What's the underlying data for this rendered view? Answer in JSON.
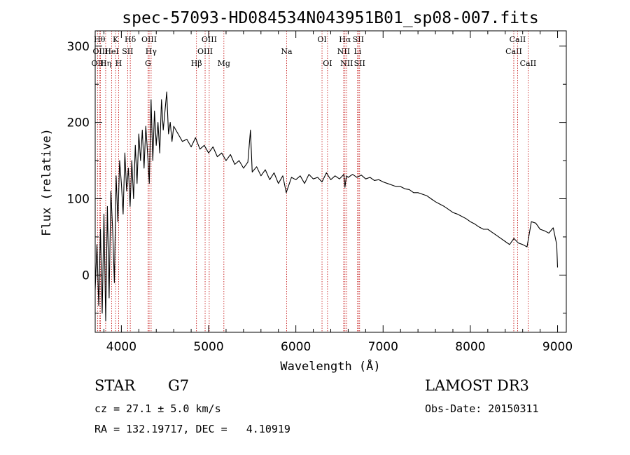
{
  "chart_data": {
    "type": "line",
    "title": "spec-57093-HD084534N043951B01_sp08-007.fits",
    "xlabel": "Wavelength (Å)",
    "ylabel": "Flux (relative)",
    "xlim": [
      3700,
      9100
    ],
    "ylim": [
      -75,
      320
    ],
    "xticks": [
      4000,
      5000,
      6000,
      7000,
      8000,
      9000
    ],
    "yticks": [
      0,
      100,
      200,
      300
    ],
    "series": [
      {
        "name": "flux",
        "x": [
          3700,
          3720,
          3740,
          3760,
          3780,
          3800,
          3820,
          3840,
          3860,
          3880,
          3900,
          3920,
          3940,
          3960,
          3980,
          4000,
          4020,
          4040,
          4060,
          4080,
          4100,
          4120,
          4140,
          4160,
          4180,
          4200,
          4220,
          4240,
          4260,
          4280,
          4300,
          4320,
          4340,
          4360,
          4380,
          4400,
          4420,
          4440,
          4460,
          4480,
          4500,
          4520,
          4540,
          4560,
          4580,
          4600,
          4650,
          4700,
          4750,
          4800,
          4850,
          4900,
          4950,
          5000,
          5050,
          5100,
          5150,
          5200,
          5250,
          5300,
          5350,
          5400,
          5450,
          5480,
          5500,
          5550,
          5600,
          5650,
          5700,
          5750,
          5800,
          5850,
          5890,
          5950,
          6000,
          6050,
          6100,
          6150,
          6200,
          6250,
          6300,
          6350,
          6400,
          6450,
          6500,
          6550,
          6563,
          6580,
          6600,
          6650,
          6700,
          6750,
          6800,
          6850,
          6900,
          6950,
          7000,
          7050,
          7100,
          7150,
          7200,
          7250,
          7300,
          7350,
          7400,
          7450,
          7500,
          7550,
          7600,
          7650,
          7700,
          7750,
          7800,
          7850,
          7900,
          7950,
          8000,
          8050,
          8100,
          8150,
          8200,
          8250,
          8300,
          8350,
          8400,
          8450,
          8500,
          8550,
          8600,
          8650,
          8700,
          8750,
          8800,
          8850,
          8900,
          8950,
          8990,
          9000
        ],
        "values": [
          -20,
          40,
          -40,
          60,
          -50,
          80,
          -60,
          90,
          -30,
          110,
          60,
          -10,
          130,
          70,
          150,
          120,
          80,
          160,
          110,
          140,
          90,
          150,
          100,
          170,
          120,
          185,
          150,
          190,
          140,
          195,
          160,
          120,
          230,
          150,
          215,
          170,
          200,
          160,
          230,
          190,
          215,
          240,
          185,
          200,
          175,
          195,
          185,
          175,
          178,
          168,
          180,
          165,
          170,
          160,
          168,
          155,
          160,
          150,
          158,
          145,
          150,
          140,
          148,
          190,
          135,
          142,
          130,
          138,
          125,
          134,
          120,
          130,
          108,
          128,
          125,
          130,
          120,
          132,
          126,
          128,
          122,
          134,
          125,
          130,
          126,
          132,
          115,
          130,
          128,
          132,
          128,
          131,
          126,
          128,
          124,
          125,
          122,
          120,
          118,
          116,
          116,
          113,
          112,
          108,
          108,
          106,
          104,
          100,
          96,
          93,
          90,
          86,
          82,
          80,
          77,
          74,
          70,
          67,
          63,
          60,
          60,
          56,
          52,
          48,
          44,
          40,
          48,
          42,
          40,
          37,
          70,
          68,
          60,
          58,
          55,
          62,
          40,
          10
        ]
      }
    ],
    "spectral_lines": [
      {
        "label": "OII",
        "x": 3727,
        "row": 2
      },
      {
        "label": "Hθ",
        "x": 3750,
        "row": 0
      },
      {
        "label": "OIII",
        "x": 3760,
        "row": 1
      },
      {
        "label": "Hη",
        "x": 3820,
        "row": 2
      },
      {
        "label": "HeI",
        "x": 3889,
        "row": 1
      },
      {
        "label": "K",
        "x": 3934,
        "row": 0
      },
      {
        "label": "H",
        "x": 3968,
        "row": 2
      },
      {
        "label": "SII",
        "x": 4072,
        "row": 1
      },
      {
        "label": "Hδ",
        "x": 4102,
        "row": 0
      },
      {
        "label": "OIII",
        "x": 4318,
        "row": 0
      },
      {
        "label": "G",
        "x": 4305,
        "row": 2
      },
      {
        "label": "Hγ",
        "x": 4341,
        "row": 1
      },
      {
        "label": "Hβ",
        "x": 4861,
        "row": 2
      },
      {
        "label": "OIII",
        "x": 4960,
        "row": 1
      },
      {
        "label": "OIII",
        "x": 5007,
        "row": 0
      },
      {
        "label": "Mg",
        "x": 5175,
        "row": 2
      },
      {
        "label": "Na",
        "x": 5894,
        "row": 1
      },
      {
        "label": "OI",
        "x": 6300,
        "row": 0
      },
      {
        "label": "OI",
        "x": 6363,
        "row": 2
      },
      {
        "label": "NII",
        "x": 6548,
        "row": 1
      },
      {
        "label": "Hα",
        "x": 6563,
        "row": 0
      },
      {
        "label": "NII",
        "x": 6583,
        "row": 2
      },
      {
        "label": "Li",
        "x": 6708,
        "row": 1
      },
      {
        "label": "SII",
        "x": 6716,
        "row": 0
      },
      {
        "label": "SII",
        "x": 6731,
        "row": 2
      },
      {
        "label": "CaII",
        "x": 8498,
        "row": 1
      },
      {
        "label": "CaII",
        "x": 8542,
        "row": 0
      },
      {
        "label": "CaII",
        "x": 8662,
        "row": 2
      }
    ]
  },
  "info": {
    "class_label": "STAR",
    "subclass": "G7",
    "survey": "LAMOST DR3",
    "redshift": "cz = 27.1 ± 5.0 km/s",
    "obs_date": "Obs-Date: 20150311",
    "coords": "RA = 132.19717, DEC =   4.10919"
  },
  "colors": {
    "line": "#000000",
    "marker": "#c00000",
    "axis": "#000000"
  }
}
